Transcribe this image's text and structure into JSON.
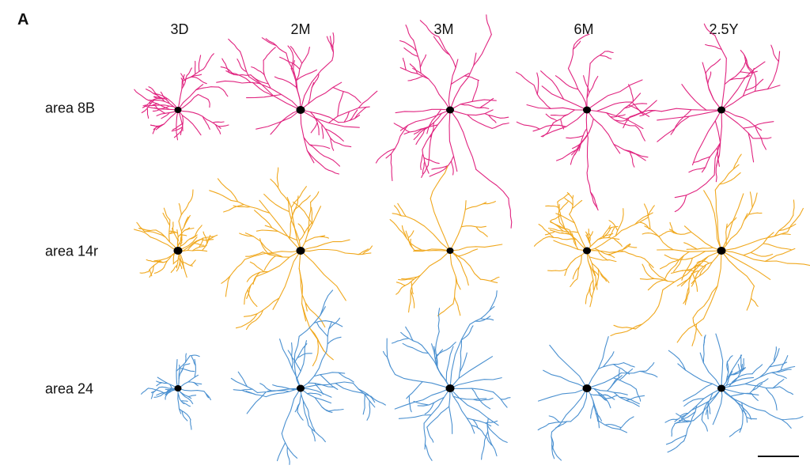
{
  "panel_label": "A",
  "ages": [
    "3D",
    "2M",
    "3M",
    "6M",
    "2.5Y"
  ],
  "areas": [
    {
      "label": "area 8B",
      "color": "#e0237f"
    },
    {
      "label": "area 14r",
      "color": "#f0a81e"
    },
    {
      "label": "area 24",
      "color": "#4a90d0"
    }
  ],
  "soma_color": "#000000",
  "scale_bar_label": ""
}
